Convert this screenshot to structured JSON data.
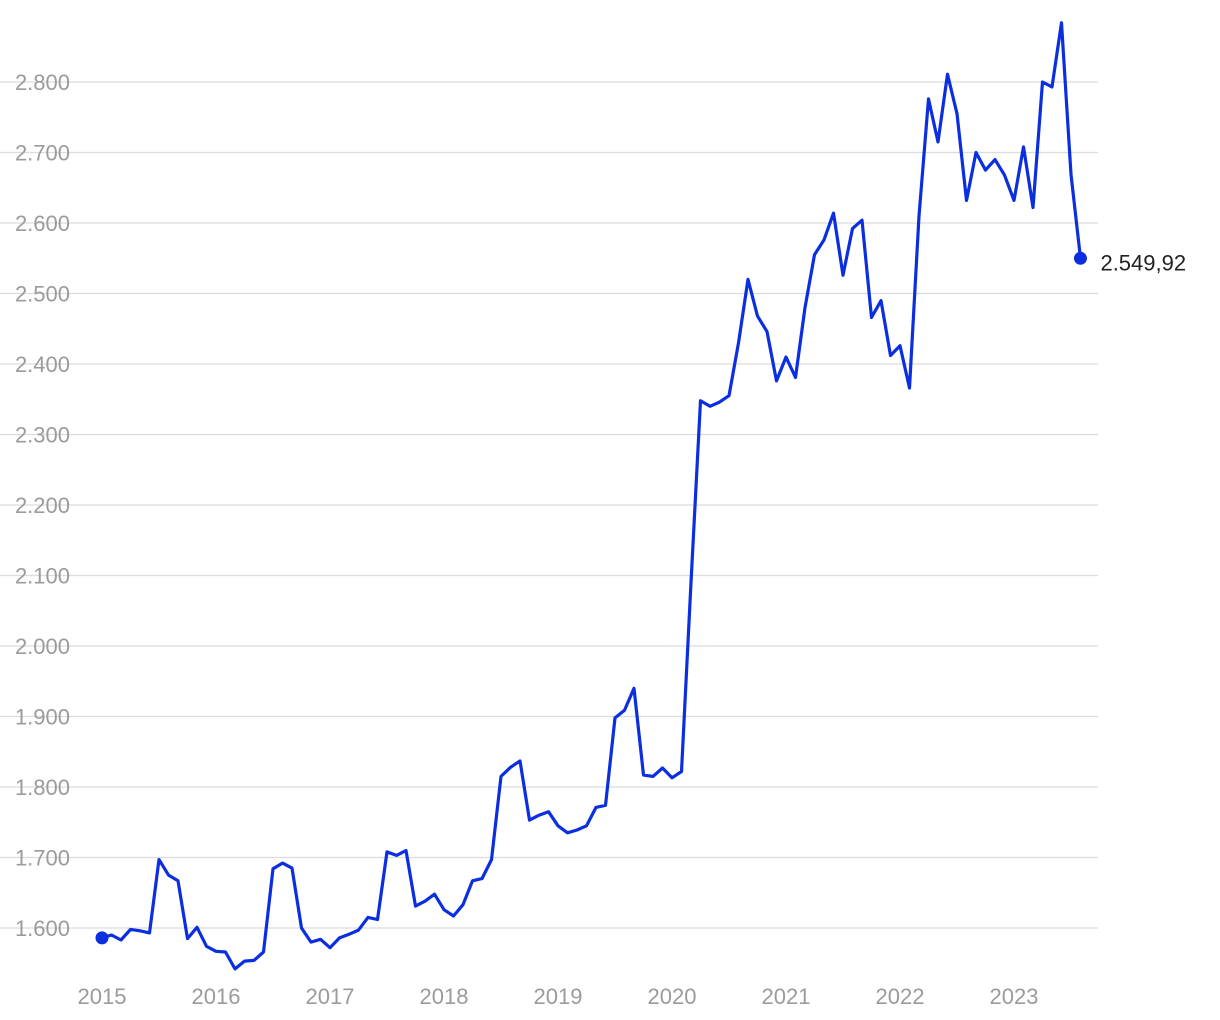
{
  "chart_data": {
    "type": "line",
    "title": "",
    "xlabel": "",
    "ylabel": "",
    "ylim": [
      1540,
      2885
    ],
    "xlim": [
      2015.0,
      2023.75
    ],
    "grid": "horizontal",
    "legend": "none",
    "y_ticks": [
      {
        "value": 1600,
        "label": "1.600"
      },
      {
        "value": 1700,
        "label": "1.700"
      },
      {
        "value": 1800,
        "label": "1.800"
      },
      {
        "value": 1900,
        "label": "1.900"
      },
      {
        "value": 2000,
        "label": "2.000"
      },
      {
        "value": 2100,
        "label": "2.100"
      },
      {
        "value": 2200,
        "label": "2.200"
      },
      {
        "value": 2300,
        "label": "2.300"
      },
      {
        "value": 2400,
        "label": "2.400"
      },
      {
        "value": 2500,
        "label": "2.500"
      },
      {
        "value": 2600,
        "label": "2.600"
      },
      {
        "value": 2700,
        "label": "2.700"
      },
      {
        "value": 2800,
        "label": "2.800"
      }
    ],
    "x_ticks": [
      {
        "value": 2015,
        "label": "2015"
      },
      {
        "value": 2016,
        "label": "2016"
      },
      {
        "value": 2017,
        "label": "2017"
      },
      {
        "value": 2018,
        "label": "2018"
      },
      {
        "value": 2019,
        "label": "2019"
      },
      {
        "value": 2020,
        "label": "2020"
      },
      {
        "value": 2021,
        "label": "2021"
      },
      {
        "value": 2022,
        "label": "2022"
      },
      {
        "value": 2023,
        "label": "2023"
      }
    ],
    "series": [
      {
        "color": "#0b2fe0",
        "x": [
          2015.0,
          2015.083,
          2015.167,
          2015.25,
          2015.333,
          2015.417,
          2015.5,
          2015.583,
          2015.667,
          2015.75,
          2015.833,
          2015.917,
          2016.0,
          2016.083,
          2016.167,
          2016.25,
          2016.333,
          2016.417,
          2016.5,
          2016.583,
          2016.667,
          2016.75,
          2016.833,
          2016.917,
          2017.0,
          2017.083,
          2017.167,
          2017.25,
          2017.333,
          2017.417,
          2017.5,
          2017.583,
          2017.667,
          2017.75,
          2017.833,
          2017.917,
          2018.0,
          2018.083,
          2018.167,
          2018.25,
          2018.333,
          2018.417,
          2018.5,
          2018.583,
          2018.667,
          2018.75,
          2018.833,
          2018.917,
          2019.0,
          2019.083,
          2019.167,
          2019.25,
          2019.333,
          2019.417,
          2019.5,
          2019.583,
          2019.667,
          2019.75,
          2019.833,
          2019.917,
          2020.0,
          2020.083,
          2020.167,
          2020.25,
          2020.333,
          2020.417,
          2020.5,
          2020.583,
          2020.667,
          2020.75,
          2020.833,
          2020.917,
          2021.0,
          2021.083,
          2021.167,
          2021.25,
          2021.333,
          2021.417,
          2021.5,
          2021.583,
          2021.667,
          2021.75,
          2021.833,
          2021.917,
          2022.0,
          2022.083,
          2022.167,
          2022.25,
          2022.333,
          2022.417,
          2022.5,
          2022.583,
          2022.667,
          2022.75,
          2022.833,
          2022.917,
          2023.0,
          2023.083,
          2023.167,
          2023.25,
          2023.333,
          2023.417,
          2023.5,
          2023.583
        ],
        "values": [
          1586,
          1590,
          1583,
          1598,
          1596,
          1593,
          1697,
          1675,
          1667,
          1585,
          1601,
          1574,
          1567,
          1566,
          1542,
          1553,
          1554,
          1566,
          1684,
          1692,
          1685,
          1600,
          1580,
          1584,
          1572,
          1586,
          1591,
          1597,
          1615,
          1612,
          1708,
          1703,
          1710,
          1631,
          1638,
          1648,
          1626,
          1617,
          1633,
          1667,
          1670,
          1697,
          1815,
          1828,
          1837,
          1753,
          1760,
          1765,
          1745,
          1735,
          1739,
          1745,
          1771,
          1774,
          1898,
          1909,
          1940,
          1817,
          1815,
          1827,
          1813,
          1822,
          2090,
          2348,
          2340,
          2346,
          2355,
          2430,
          2520,
          2468,
          2446,
          2376,
          2410,
          2381,
          2480,
          2555,
          2576,
          2614,
          2526,
          2592,
          2604,
          2466,
          2490,
          2412,
          2426,
          2366,
          2610,
          2776,
          2715,
          2811,
          2755,
          2632,
          2700,
          2675,
          2690,
          2668,
          2632,
          2708,
          2622,
          2800,
          2793,
          2884,
          2669,
          2549.92
        ]
      }
    ],
    "annotations": [
      {
        "x": 2023.583,
        "y": 2549.92,
        "label": "2.549,92"
      }
    ]
  }
}
